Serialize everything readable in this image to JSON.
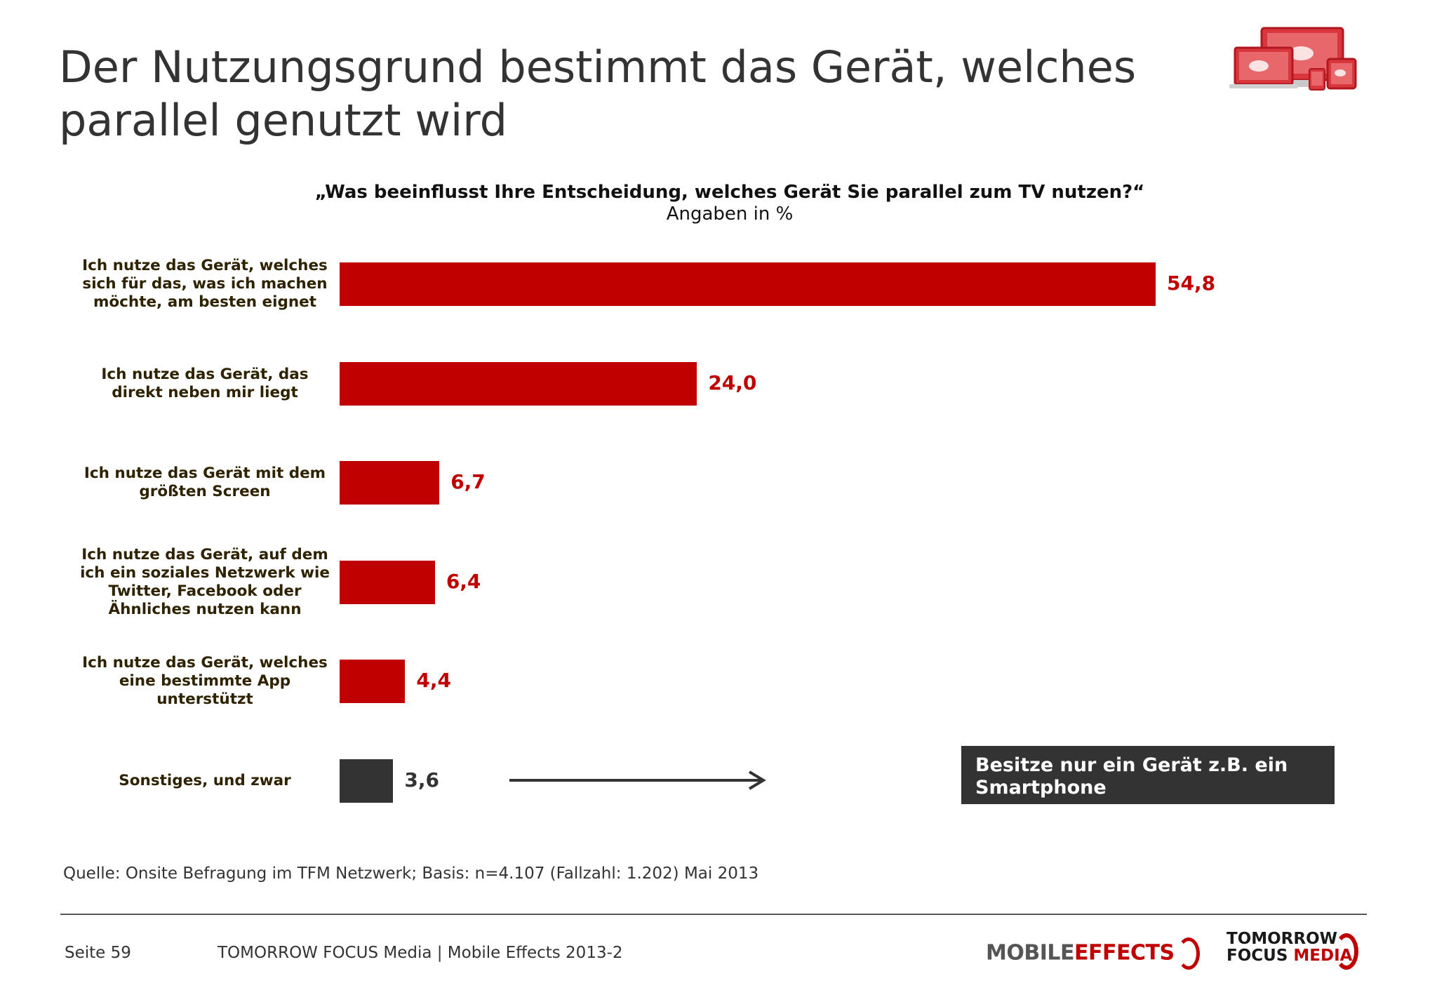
{
  "title": "Der Nutzungsgrund bestimmt das Gerät, welches parallel genutzt wird",
  "colors": {
    "accent": "#c00000",
    "dark": "#333333"
  },
  "chart_data": {
    "type": "bar",
    "orientation": "horizontal",
    "title": "„Was beeinflusst Ihre Entscheidung, welches Gerät Sie parallel zum TV nutzen?“",
    "subtitle": "Angaben in %",
    "categories": [
      "Ich nutze das Gerät, welches sich für das, was ich machen möchte, am besten eignet",
      "Ich nutze das Gerät, das direkt neben mir liegt",
      "Ich nutze das Gerät mit dem größten Screen",
      "Ich nutze das Gerät, auf dem ich ein soziales Netzwerk wie Twitter, Facebook oder Ähnliches nutzen kann",
      "Ich nutze das Gerät, welches eine bestimmte App unterstützt",
      "Sonstiges, und zwar"
    ],
    "values": [
      54.8,
      24.0,
      6.7,
      6.4,
      4.4,
      3.6
    ],
    "value_labels": [
      "54,8",
      "24,0",
      "6,7",
      "6,4",
      "4,4",
      "3,6"
    ],
    "bar_colors": [
      "#c00000",
      "#c00000",
      "#c00000",
      "#c00000",
      "#c00000",
      "#333333"
    ],
    "xlim": [
      0,
      54.8
    ],
    "grid": false,
    "legend": "none"
  },
  "annotation": {
    "text": "Besitze nur ein Gerät z.B. ein Smartphone"
  },
  "source": "Quelle: Onsite Befragung im TFM Netzwerk; Basis: n=4.107 (Fallzahl: 1.202) Mai 2013",
  "footer": {
    "page": "Seite 59",
    "publication": "TOMORROW FOCUS Media | Mobile Effects 2013-2",
    "logo_mobile": "MOBILE",
    "logo_effects": "EFFECTS",
    "logo_tomorrow": "TOMORROW",
    "logo_focus": "FOCUS",
    "logo_media": "MEDIA"
  }
}
